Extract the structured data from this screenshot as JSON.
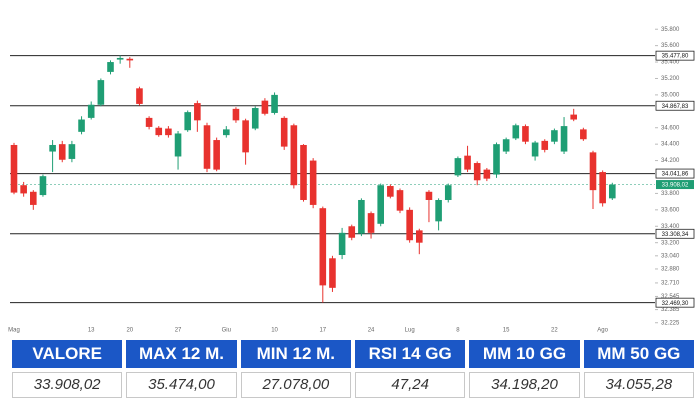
{
  "chart_data": {
    "type": "candlestick",
    "up_color": "#1f9e74",
    "down_color": "#e8322e",
    "categories": [
      "Mag",
      null,
      null,
      null,
      null,
      null,
      null,
      null,
      "13",
      null,
      null,
      null,
      "20",
      null,
      null,
      null,
      null,
      "27",
      null,
      null,
      null,
      null,
      "Giu",
      null,
      null,
      null,
      null,
      "10",
      null,
      null,
      null,
      null,
      "17",
      null,
      null,
      null,
      null,
      "24",
      null,
      null,
      null,
      "Lug",
      null,
      null,
      null,
      null,
      "8",
      null,
      null,
      null,
      null,
      "15",
      null,
      null,
      null,
      null,
      "22",
      null,
      null,
      null,
      null,
      "Ago",
      null
    ],
    "open": [
      34390,
      33900,
      33820,
      33780,
      34310,
      34400,
      34220,
      34550,
      34720,
      34880,
      35280,
      35430,
      35440,
      35080,
      34720,
      34600,
      34590,
      34250,
      34570,
      34900,
      34630,
      34450,
      34510,
      34830,
      34690,
      34590,
      34930,
      34780,
      34720,
      34630,
      34390,
      34200,
      33620,
      33010,
      33050,
      33400,
      33310,
      33560,
      33430,
      33890,
      33840,
      33600,
      33350,
      33820,
      33460,
      33720,
      34020,
      34260,
      34170,
      34090,
      34030,
      34310,
      34470,
      34620,
      34250,
      34440,
      34430,
      34310,
      34760,
      34580,
      34300,
      34060,
      33740
    ],
    "high": [
      34415,
      33940,
      33840,
      34030,
      34450,
      34440,
      34440,
      34740,
      34920,
      35200,
      35420,
      35478,
      35460,
      35100,
      34740,
      34620,
      34620,
      34560,
      34810,
      34930,
      34660,
      34480,
      34620,
      34850,
      34710,
      34860,
      34960,
      35030,
      34740,
      34650,
      34400,
      34230,
      33640,
      33040,
      33380,
      33420,
      33740,
      33580,
      33920,
      33910,
      33860,
      33630,
      33370,
      33840,
      33740,
      33920,
      34250,
      34380,
      34190,
      34110,
      34420,
      34480,
      34650,
      34640,
      34440,
      34460,
      34590,
      34730,
      34830,
      34600,
      34320,
      34080,
      33930
    ],
    "low": [
      33790,
      33760,
      33600,
      33760,
      34060,
      34180,
      34180,
      34520,
      34700,
      34860,
      35250,
      35380,
      35330,
      34870,
      34580,
      34490,
      34480,
      34090,
      34550,
      34550,
      34060,
      34070,
      34480,
      34660,
      34150,
      34570,
      34750,
      34760,
      34330,
      33860,
      33700,
      33620,
      32470,
      32600,
      33000,
      33230,
      33280,
      33250,
      33400,
      33740,
      33560,
      33200,
      33060,
      33450,
      33350,
      33690,
      34000,
      34060,
      33900,
      33950,
      33990,
      34280,
      34450,
      34400,
      34200,
      34300,
      34400,
      34280,
      34680,
      34440,
      33610,
      33640,
      33720
    ],
    "close": [
      33810,
      33800,
      33660,
      34010,
      34390,
      34210,
      34400,
      34700,
      34880,
      35180,
      35400,
      35450,
      35420,
      34890,
      34610,
      34510,
      34510,
      34530,
      34790,
      34690,
      34100,
      34090,
      34580,
      34690,
      34300,
      34840,
      34770,
      35000,
      34370,
      33900,
      33720,
      33660,
      32680,
      32650,
      33320,
      33260,
      33720,
      33320,
      33900,
      33760,
      33590,
      33230,
      33200,
      33720,
      33720,
      33900,
      34230,
      34090,
      33960,
      33980,
      34400,
      34460,
      34630,
      34430,
      34420,
      34330,
      34570,
      34620,
      34700,
      34460,
      33840,
      33680,
      33908
    ],
    "ylim": [
      32100,
      35900
    ],
    "yticks": [
      {
        "value": 35800,
        "label": "35.800"
      },
      {
        "value": 35600,
        "label": "35.600"
      },
      {
        "value": 35400,
        "label": "35.400"
      },
      {
        "value": 35200,
        "label": "35.200"
      },
      {
        "value": 35000,
        "label": "35.000"
      },
      {
        "value": 34600,
        "label": "34.600"
      },
      {
        "value": 34400,
        "label": "34.400"
      },
      {
        "value": 34200,
        "label": "34.200"
      },
      {
        "value": 33800,
        "label": "33.800"
      },
      {
        "value": 33600,
        "label": "33.600"
      },
      {
        "value": 33400,
        "label": "33.400"
      },
      {
        "value": 33200,
        "label": "33.200"
      },
      {
        "value": 33040,
        "label": "33.040"
      },
      {
        "value": 32880,
        "label": "32.880"
      },
      {
        "value": 32710,
        "label": "32.710"
      },
      {
        "value": 32545,
        "label": "32.545"
      },
      {
        "value": 32385,
        "label": "32.385"
      },
      {
        "value": 32225,
        "label": "32.225"
      }
    ],
    "levels": [
      {
        "value": 35477.8,
        "label": "35.477,80"
      },
      {
        "value": 34867.83,
        "label": "34.867,83"
      },
      {
        "value": 34041.86,
        "label": "34.041,86"
      },
      {
        "value": 33308.34,
        "label": "33.308,34"
      },
      {
        "value": 32469.3,
        "label": "32.469,30"
      }
    ],
    "price_label": {
      "value": 33908.02,
      "label": "33.908,02"
    }
  },
  "table": {
    "headers": [
      "VALORE",
      "MAX 12 M.",
      "MIN 12 M.",
      "RSI 14 GG",
      "MM 10 GG",
      "MM 50 GG"
    ],
    "values": [
      "33.908,02",
      "35.474,00",
      "27.078,00",
      "47,24",
      "34.198,20",
      "34.055,28"
    ]
  }
}
